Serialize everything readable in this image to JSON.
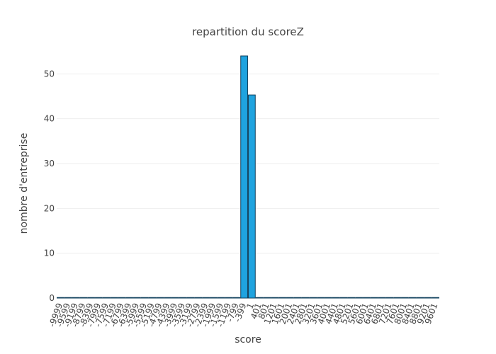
{
  "chart_data": {
    "type": "bar",
    "title": "repartition du scoreZ",
    "xlabel": "score",
    "ylabel": "nombre d'entreprise",
    "ylim": [
      0,
      57
    ],
    "yticks": [
      0,
      10,
      20,
      30,
      40,
      50
    ],
    "grid": true,
    "bar_color": "#1fa3df",
    "bar_edge_color": "#0e3f5c",
    "categories": [
      "-9999",
      "-9599",
      "-9199",
      "-8799",
      "-8399",
      "-7999",
      "-7599",
      "-7199",
      "-6799",
      "-6399",
      "-5999",
      "-5599",
      "-5199",
      "-4799",
      "-4399",
      "-3999",
      "-3599",
      "-3199",
      "-2799",
      "-2399",
      "-1999",
      "-1599",
      "-1199",
      "-799",
      "-399",
      "1",
      "401",
      "801",
      "1201",
      "1601",
      "2001",
      "2401",
      "2801",
      "3201",
      "3601",
      "4001",
      "4401",
      "4801",
      "5201",
      "5601",
      "6001",
      "6401",
      "6801",
      "7201",
      "7601",
      "8001",
      "8401",
      "8801",
      "9201",
      "9601"
    ],
    "values": [
      0,
      0,
      0,
      0,
      0,
      0,
      0,
      0,
      0,
      0,
      0,
      0,
      0,
      0,
      0,
      0,
      0,
      0,
      0,
      0,
      0,
      0,
      0,
      0,
      54,
      45.3,
      0,
      0,
      0,
      0,
      0,
      0,
      0,
      0,
      0,
      0,
      0,
      0,
      0,
      0,
      0,
      0,
      0,
      0,
      0,
      0,
      0,
      0,
      0,
      0
    ]
  }
}
